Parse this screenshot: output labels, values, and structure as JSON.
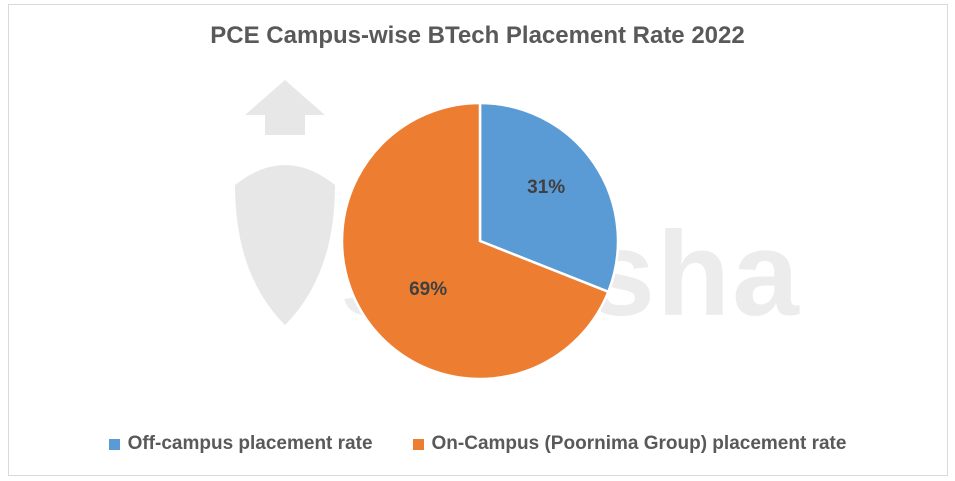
{
  "chart_data": {
    "type": "pie",
    "title": "PCE Campus-wise BTech Placement Rate 2022",
    "slices": [
      {
        "label": "Off-campus placement rate",
        "value": 31,
        "display": "31%",
        "color": "#5b9bd5"
      },
      {
        "label": "On-Campus (Poornima Group) placement rate",
        "value": 69,
        "display": "69%",
        "color": "#ed7d31"
      }
    ],
    "legend_position": "bottom"
  },
  "watermark": {
    "text": "shiksha"
  }
}
